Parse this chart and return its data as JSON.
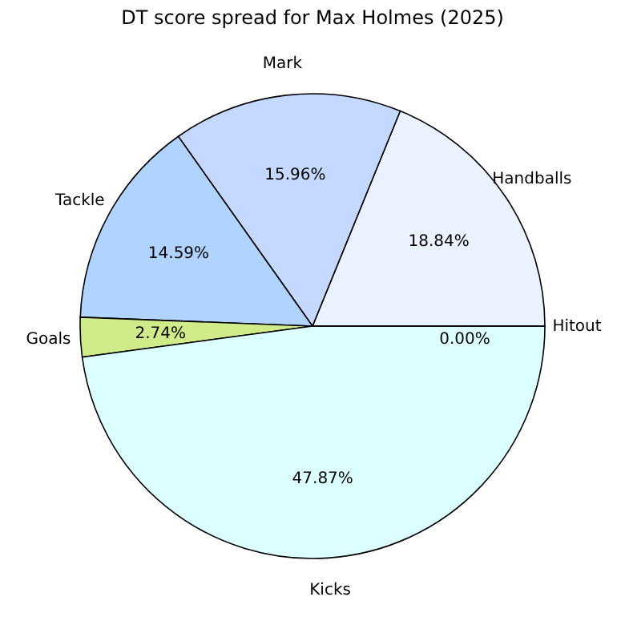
{
  "chart_data": {
    "type": "pie",
    "title": "DT score spread for Max Holmes (2025)",
    "categories": [
      "Handballs",
      "Mark",
      "Tackle",
      "Goals",
      "Kicks",
      "Hitout"
    ],
    "values": [
      18.84,
      15.96,
      14.59,
      2.74,
      47.87,
      0.0
    ],
    "value_labels": [
      "18.84%",
      "15.96%",
      "14.59%",
      "2.74%",
      "47.87%",
      "0.00%"
    ],
    "colors": [
      "#eaf1ff",
      "#c5d8ff",
      "#b0d4ff",
      "#d0ec8a",
      "#dcffff",
      "#ffe4e1"
    ],
    "legend": false
  }
}
